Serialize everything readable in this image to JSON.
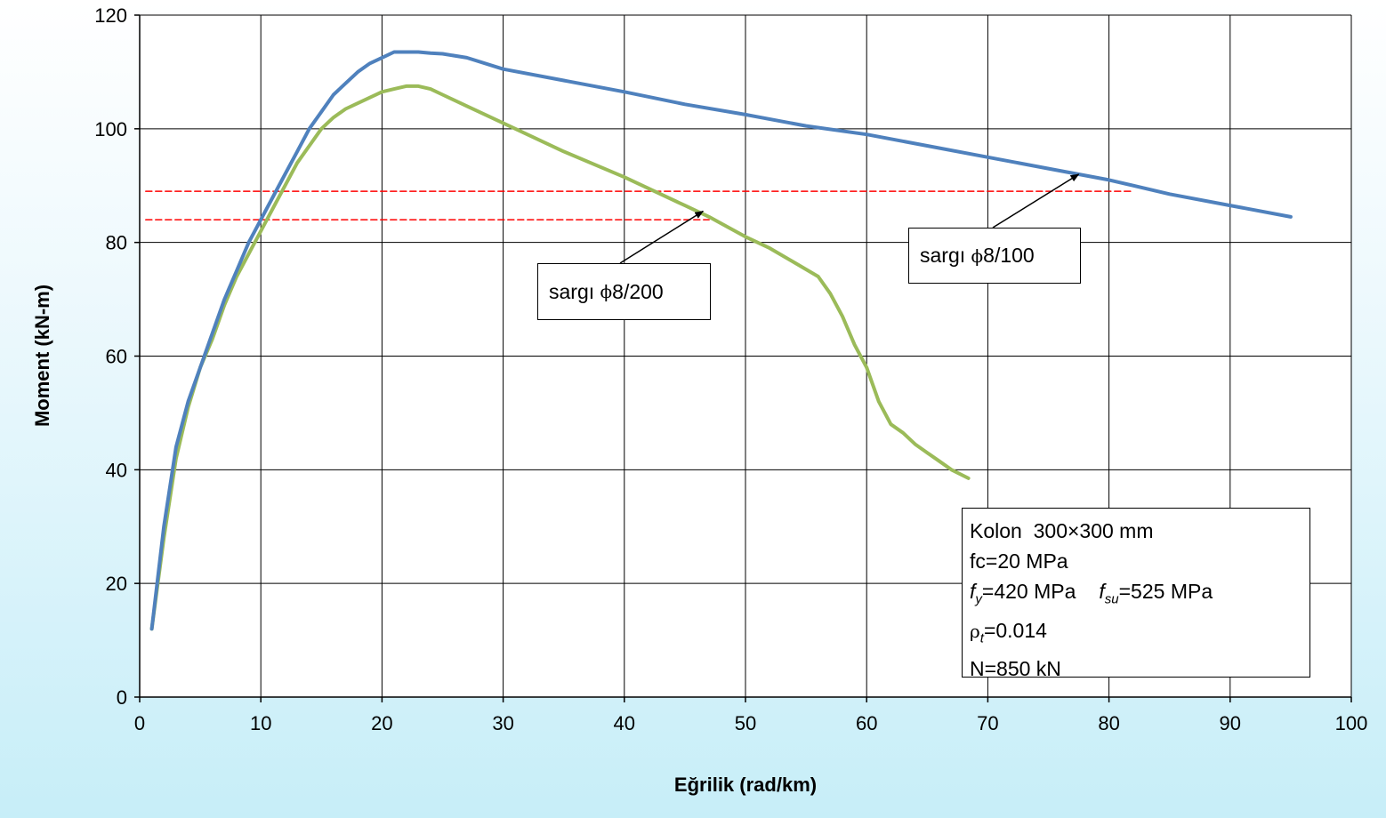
{
  "chart_data": {
    "type": "line",
    "xlabel": "Eğrilik (rad/km)",
    "ylabel": "Moment (kN-m)",
    "xlim": [
      0,
      100
    ],
    "ylim": [
      0,
      120
    ],
    "xticks": [
      0,
      10,
      20,
      30,
      40,
      50,
      60,
      70,
      80,
      90,
      100
    ],
    "yticks": [
      0,
      20,
      40,
      60,
      80,
      100,
      120
    ],
    "grid": true,
    "series": [
      {
        "name": "sargı ϕ8/100",
        "color": "#4f81bd",
        "x": [
          1,
          2,
          3,
          4,
          5,
          6,
          7,
          8,
          9,
          10,
          11,
          12,
          13,
          14,
          15,
          16,
          17,
          18,
          19,
          20,
          21,
          22,
          23,
          24,
          25,
          27,
          30,
          35,
          40,
          45,
          50,
          55,
          60,
          65,
          70,
          75,
          80,
          85,
          90,
          95
        ],
        "y": [
          12,
          30,
          44,
          52,
          58,
          64,
          70,
          75,
          80,
          84,
          88,
          92,
          96,
          100,
          103,
          106,
          108,
          110,
          111.5,
          112.5,
          113.5,
          113.5,
          113.5,
          113.3,
          113.2,
          112.5,
          110.5,
          108.5,
          106.5,
          104.3,
          102.5,
          100.5,
          99,
          97,
          95,
          93,
          91,
          88.5,
          86.5,
          84.5
        ]
      },
      {
        "name": "sargı ϕ8/200",
        "color": "#9bbb59",
        "x": [
          1,
          2,
          3,
          4,
          5,
          6,
          7,
          8,
          9,
          10,
          11,
          12,
          13,
          14,
          15,
          16,
          17,
          18,
          19,
          20,
          21,
          22,
          23,
          24,
          25,
          27,
          30,
          35,
          40,
          45,
          47,
          50,
          52,
          54,
          56,
          57,
          58,
          59,
          60,
          61,
          62,
          63,
          64,
          65,
          66,
          67,
          68.4
        ],
        "y": [
          12,
          28,
          42,
          51,
          58,
          63,
          69,
          74,
          78,
          82,
          86,
          90,
          94,
          97,
          100,
          102,
          103.5,
          104.5,
          105.5,
          106.5,
          107,
          107.5,
          107.5,
          107,
          106,
          104,
          101,
          96,
          91.5,
          86.5,
          84.5,
          81,
          79,
          76.5,
          74,
          71,
          67,
          62,
          58,
          52,
          48,
          46.5,
          44.5,
          43,
          41.5,
          40,
          38.5
        ]
      },
      {
        "name": "",
        "color": "#ff0000",
        "dashed": true,
        "x": [
          0.5,
          82
        ],
        "y": [
          89,
          89
        ]
      },
      {
        "name": "",
        "color": "#ff0000",
        "dashed": true,
        "x": [
          0.5,
          47
        ],
        "y": [
          84,
          84
        ]
      }
    ],
    "annotations": [
      {
        "text": "sargı ϕ8/100",
        "arrow_to": [
          77.5,
          92
        ]
      },
      {
        "text": "sargı ϕ8/200",
        "arrow_to": [
          46.5,
          85.5
        ]
      }
    ]
  },
  "callouts": {
    "sargi_100": {
      "prefix": "sargı ",
      "symbol": "ϕ",
      "suffix": "8/100"
    },
    "sargi_200": {
      "prefix": "sargı ",
      "symbol": "ϕ",
      "suffix": "8/200"
    }
  },
  "info_box": {
    "line1": "Kolon  300×300 mm",
    "line2": "fc=20 MPa",
    "fy_sym": "f",
    "fy_sub": "y",
    "fy_val": "=420 MPa",
    "fsu_sym": "f",
    "fsu_sub": "su",
    "fsu_val": "=525 MPa",
    "rho_sym": "ρ",
    "rho_sub": "t",
    "rho_val": "=0.014",
    "line5": "N=850 kN"
  }
}
